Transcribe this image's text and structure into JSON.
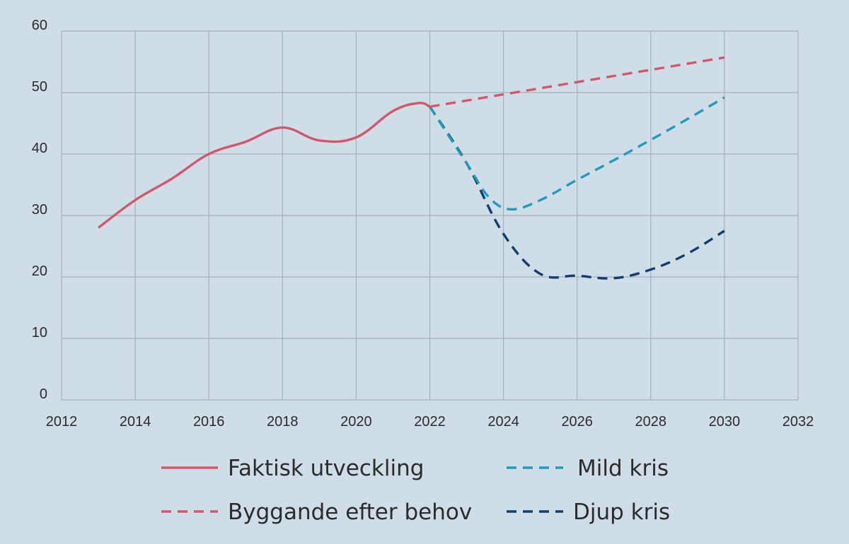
{
  "chart_data": {
    "type": "line",
    "title": "",
    "xlabel": "",
    "ylabel": "",
    "xlim": [
      2012,
      2032
    ],
    "ylim": [
      0,
      60
    ],
    "x_ticks": [
      2012,
      2014,
      2016,
      2018,
      2020,
      2022,
      2024,
      2026,
      2028,
      2030,
      2032
    ],
    "y_ticks": [
      0,
      10,
      20,
      30,
      40,
      50,
      60
    ],
    "grid": true,
    "legend_position": "bottom",
    "series": [
      {
        "name": "Faktisk utveckling",
        "color": "#d4566a",
        "style": "solid",
        "x": [
          2013,
          2014,
          2015,
          2016,
          2017,
          2018,
          2019,
          2020,
          2021,
          2021.7,
          2022
        ],
        "y": [
          28,
          32.5,
          36,
          40,
          42,
          44.3,
          42.2,
          42.7,
          47,
          48.3,
          47.7
        ]
      },
      {
        "name": "Byggande efter behov",
        "color": "#d4566a",
        "style": "dashed",
        "x": [
          2022,
          2024,
          2026,
          2028,
          2030
        ],
        "y": [
          47.7,
          49.7,
          51.7,
          53.7,
          55.7
        ]
      },
      {
        "name": "Mild kris",
        "color": "#1f9bbd",
        "style": "dashed",
        "x": [
          2022,
          2023,
          2023.6,
          2024.2,
          2025,
          2026,
          2027,
          2028,
          2029,
          2030
        ],
        "y": [
          47.7,
          38.5,
          33,
          31,
          32.5,
          35.8,
          39,
          42.3,
          45.7,
          49.2
        ]
      },
      {
        "name": "Djup kris",
        "color": "#103e6e",
        "style": "dashed",
        "x": [
          2022,
          2023,
          2024,
          2025,
          2026,
          2027,
          2028,
          2029,
          2030
        ],
        "y": [
          47.7,
          38.5,
          27,
          20.5,
          20.2,
          19.8,
          21.2,
          23.8,
          27.5
        ]
      }
    ]
  },
  "legend": {
    "items": [
      {
        "label": "Faktisk utveckling",
        "color": "#d4566a",
        "style": "solid"
      },
      {
        "label": "Mild kris",
        "color": "#1f9bbd",
        "style": "dashed"
      },
      {
        "label": "Byggande efter behov",
        "color": "#d4566a",
        "style": "dashed"
      },
      {
        "label": "Djup kris",
        "color": "#103e6e",
        "style": "dashed"
      }
    ]
  },
  "colors": {
    "background": "#cfdde7",
    "grid": "#a8b0b8",
    "text": "#2b2b2b"
  }
}
